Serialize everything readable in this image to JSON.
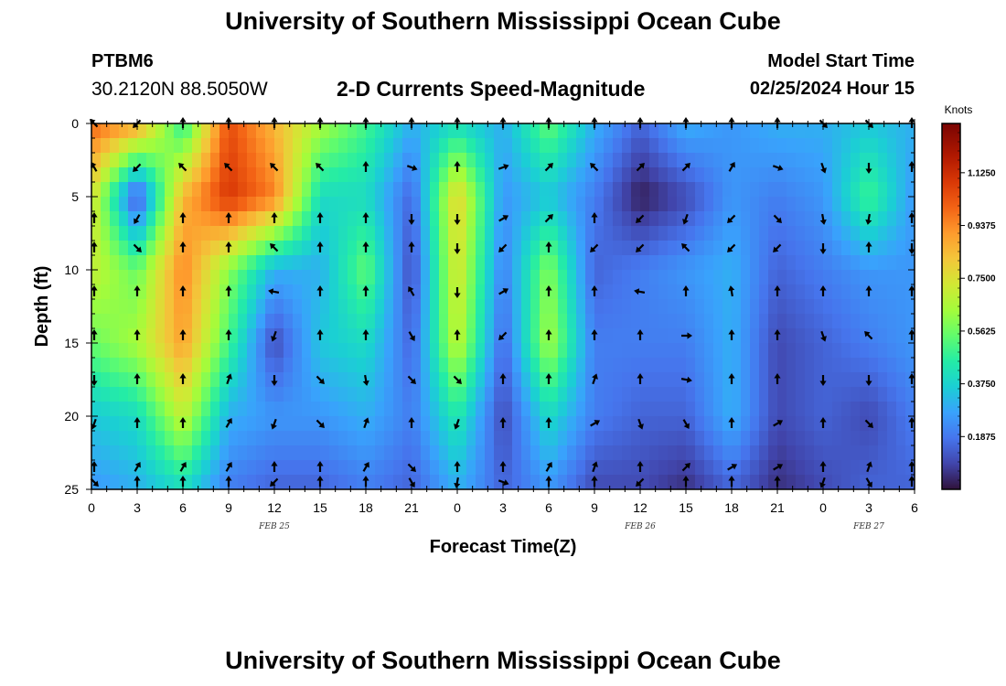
{
  "header": {
    "title": "University of Southern Mississippi Ocean Cube",
    "station_id": "PTBM6",
    "coords": "30.2120N  88.5050W",
    "subtitle": "2-D Currents Speed-Magnitude",
    "model_start_label": "Model Start Time",
    "model_start_value": "02/25/2024 Hour 15"
  },
  "footer": {
    "title": "University of Southern Mississippi Ocean Cube"
  },
  "chart_data": {
    "type": "heatmap",
    "title": "2-D Currents Speed-Magnitude",
    "xlabel": "Forecast Time(Z)",
    "ylabel": "Depth (ft)",
    "x_ticks": [
      "0",
      "3",
      "6",
      "9",
      "12",
      "15",
      "18",
      "21",
      "0",
      "3",
      "6",
      "9",
      "12",
      "15",
      "18",
      "21",
      "0",
      "3",
      "6"
    ],
    "x_range_hours": [
      0,
      54
    ],
    "y_ticks": [
      0,
      5,
      10,
      15,
      20,
      25
    ],
    "ylim": [
      0,
      25
    ],
    "date_labels": [
      {
        "label": "FEB 25",
        "hour": 12
      },
      {
        "label": "FEB 26",
        "hour": 36
      },
      {
        "label": "FEB 27",
        "hour": 51
      }
    ],
    "colorbar": {
      "units": "Knots",
      "min": 0,
      "max": 1.3,
      "ticks": [
        "1.1250",
        "0.9375",
        "0.7500",
        "0.5625",
        "0.3750",
        "0.1875"
      ],
      "tick_values": [
        1.125,
        0.9375,
        0.75,
        0.5625,
        0.375,
        0.1875
      ]
    },
    "speed_grid": {
      "hours": [
        0,
        3,
        6,
        9,
        12,
        15,
        18,
        21,
        24,
        27,
        30,
        33,
        36,
        39,
        42,
        45,
        48,
        51,
        54
      ],
      "depths": [
        0,
        5,
        10,
        15,
        20,
        25
      ],
      "values_knots": [
        [
          1.0,
          0.9,
          0.45,
          1.05,
          0.85,
          0.65,
          0.5,
          0.3,
          0.4,
          0.3,
          0.55,
          0.3,
          0.15,
          0.3,
          0.25,
          0.3,
          0.3,
          0.35,
          0.3
        ],
        [
          0.75,
          0.1,
          0.85,
          1.1,
          0.95,
          0.4,
          0.4,
          0.15,
          0.8,
          0.25,
          0.35,
          0.2,
          0.02,
          0.1,
          0.25,
          0.2,
          0.25,
          0.5,
          0.25
        ],
        [
          0.7,
          0.55,
          0.95,
          0.6,
          0.3,
          0.3,
          0.55,
          0.1,
          0.75,
          0.2,
          0.6,
          0.15,
          0.2,
          0.25,
          0.3,
          0.15,
          0.2,
          0.25,
          0.25
        ],
        [
          0.55,
          0.65,
          0.9,
          0.5,
          0.1,
          0.35,
          0.4,
          0.15,
          0.7,
          0.15,
          0.65,
          0.2,
          0.2,
          0.2,
          0.3,
          0.1,
          0.15,
          0.2,
          0.25
        ],
        [
          0.35,
          0.4,
          0.7,
          0.3,
          0.25,
          0.25,
          0.3,
          0.2,
          0.45,
          0.1,
          0.4,
          0.2,
          0.15,
          0.15,
          0.3,
          0.1,
          0.15,
          0.1,
          0.2
        ],
        [
          0.25,
          0.3,
          0.4,
          0.2,
          0.15,
          0.15,
          0.2,
          0.15,
          0.3,
          0.15,
          0.25,
          0.1,
          0.1,
          0.05,
          0.15,
          0.05,
          0.1,
          0.15,
          0.15
        ]
      ]
    },
    "vector_grid": {
      "hours": [
        0,
        3,
        6,
        9,
        12,
        15,
        18,
        21,
        24,
        27,
        30,
        33,
        36,
        39,
        42,
        45,
        48,
        51,
        54
      ],
      "depths": [
        0,
        3,
        6.5,
        8.5,
        11.5,
        14.5,
        17.5,
        20.5,
        23.5,
        24.5
      ],
      "direction_rows_deg": [
        [
          315,
          225,
          0,
          0,
          0,
          0,
          0,
          0,
          0,
          0,
          0,
          0,
          0,
          0,
          0,
          0,
          135,
          135,
          0
        ],
        [
          330,
          225,
          315,
          315,
          315,
          315,
          0,
          110,
          0,
          70,
          45,
          315,
          45,
          45,
          30,
          110,
          160,
          180,
          0
        ],
        [
          0,
          210,
          0,
          0,
          0,
          0,
          0,
          180,
          180,
          60,
          45,
          0,
          225,
          200,
          225,
          135,
          170,
          190,
          0
        ],
        [
          0,
          135,
          0,
          0,
          315,
          0,
          0,
          0,
          180,
          225,
          0,
          225,
          225,
          315,
          225,
          225,
          180,
          0,
          180
        ],
        [
          0,
          0,
          0,
          0,
          280,
          0,
          0,
          330,
          180,
          60,
          0,
          0,
          280,
          0,
          350,
          0,
          0,
          0,
          0
        ],
        [
          0,
          0,
          0,
          0,
          200,
          0,
          0,
          150,
          0,
          225,
          0,
          0,
          0,
          90,
          0,
          0,
          160,
          315,
          0
        ],
        [
          180,
          0,
          0,
          20,
          180,
          135,
          170,
          135,
          135,
          0,
          0,
          20,
          0,
          100,
          0,
          0,
          180,
          180,
          0
        ],
        [
          200,
          0,
          0,
          30,
          200,
          135,
          20,
          0,
          200,
          0,
          0,
          60,
          160,
          150,
          0,
          60,
          0,
          135,
          0
        ],
        [
          0,
          30,
          30,
          30,
          0,
          0,
          30,
          135,
          0,
          0,
          30,
          20,
          0,
          45,
          60,
          60,
          0,
          20,
          0
        ],
        [
          135,
          0,
          0,
          0,
          225,
          0,
          0,
          150,
          190,
          110,
          0,
          0,
          225,
          0,
          0,
          0,
          200,
          150,
          0
        ]
      ]
    }
  }
}
